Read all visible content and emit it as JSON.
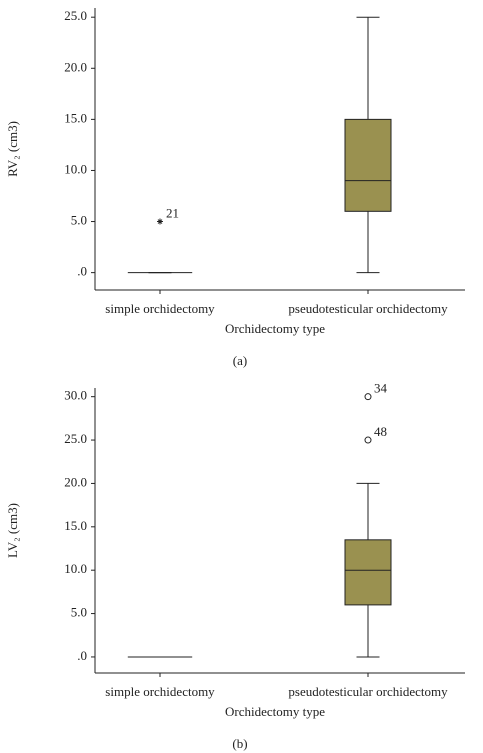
{
  "chart_data": [
    {
      "type": "box",
      "caption": "(a)",
      "ylabel": "RV₂ (cm3)",
      "xlabel": "Orchidectomy type",
      "categories": [
        "simple orchidectomy",
        "pseudotesticular orchidectomy"
      ],
      "color": "#9a9150",
      "outlier_marker": "star",
      "boxes": [
        {
          "min": 0,
          "q1": 0,
          "median": 0,
          "q3": 0,
          "max": 0,
          "outliers": [
            {
              "value": 5,
              "label": "21"
            }
          ]
        },
        {
          "min": 0,
          "q1": 6,
          "median": 9,
          "q3": 15,
          "max": 25,
          "outliers": []
        }
      ],
      "ylim": [
        -1.7,
        25.9
      ],
      "yticks": [
        {
          "value": 0,
          "label": ".0"
        },
        {
          "value": 5,
          "label": "5.0"
        },
        {
          "value": 10,
          "label": "10.0"
        },
        {
          "value": 15,
          "label": "15.0"
        },
        {
          "value": 20,
          "label": "20.0"
        },
        {
          "value": 25,
          "label": "25.0"
        }
      ]
    },
    {
      "type": "box",
      "caption": "(b)",
      "ylabel": "LV₂ (cm3)",
      "xlabel": "Orchidectomy type",
      "categories": [
        "simple orchidectomy",
        "pseudotesticular orchidectomy"
      ],
      "color": "#9a9150",
      "outlier_marker": "circle",
      "boxes": [
        {
          "min": 0,
          "q1": 0,
          "median": 0,
          "q3": 0,
          "max": 0,
          "outliers": []
        },
        {
          "min": 0,
          "q1": 6,
          "median": 10,
          "q3": 13.5,
          "max": 20,
          "outliers": [
            {
              "value": 30,
              "label": "34"
            },
            {
              "value": 25,
              "label": "48"
            }
          ]
        }
      ],
      "ylim": [
        -1.85,
        31
      ],
      "yticks": [
        {
          "value": 0,
          "label": ".0"
        },
        {
          "value": 5,
          "label": "5.0"
        },
        {
          "value": 10,
          "label": "10.0"
        },
        {
          "value": 15,
          "label": "15.0"
        },
        {
          "value": 20,
          "label": "20.0"
        },
        {
          "value": 25,
          "label": "25.0"
        },
        {
          "value": 30,
          "label": "30.0"
        }
      ]
    }
  ]
}
